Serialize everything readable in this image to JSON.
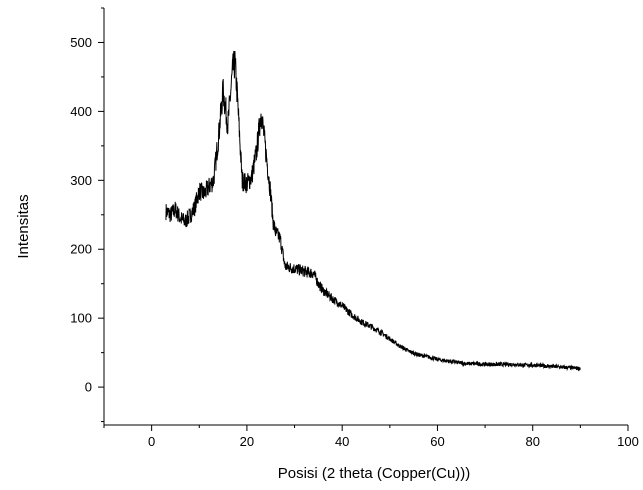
{
  "chart_data": {
    "type": "line",
    "title": "",
    "xlabel": "Posisi (2 theta (Copper(Cu)))",
    "ylabel": "Intensitas",
    "xlim": [
      -10,
      100
    ],
    "ylim": [
      -55,
      550
    ],
    "x_ticks": [
      0,
      20,
      40,
      60,
      80,
      100
    ],
    "x_tick_labels": [
      "0",
      "20",
      "40",
      "60",
      "80",
      "100"
    ],
    "y_ticks": [
      0,
      100,
      200,
      300,
      400,
      500
    ],
    "y_tick_labels": [
      "0",
      "100",
      "200",
      "300",
      "400",
      "500"
    ],
    "grid": false,
    "legend": "none",
    "line_color": "#000000",
    "series": [
      {
        "x": [
          3,
          4,
          5,
          6,
          7,
          8,
          9,
          10,
          11,
          12,
          13,
          14,
          15,
          16,
          17,
          17.5,
          18,
          19,
          20,
          21,
          22,
          23,
          24,
          25,
          25.5,
          26,
          27,
          28,
          30,
          32,
          34,
          35,
          36,
          38,
          40,
          42,
          44,
          46,
          48,
          50,
          52,
          54,
          56,
          58,
          60,
          62,
          64,
          66,
          68,
          70,
          72,
          74,
          76,
          78,
          80,
          82,
          84,
          86,
          88,
          90
        ],
        "y": [
          255,
          250,
          258,
          245,
          240,
          248,
          260,
          285,
          280,
          290,
          300,
          360,
          430,
          380,
          460,
          470,
          420,
          300,
          295,
          305,
          340,
          400,
          340,
          280,
          240,
          225,
          215,
          175,
          172,
          168,
          165,
          150,
          140,
          128,
          118,
          105,
          95,
          88,
          80,
          70,
          60,
          52,
          47,
          44,
          40,
          38,
          36,
          34,
          34,
          33,
          33,
          33,
          33,
          32,
          32,
          31,
          30,
          29,
          28,
          27
        ]
      }
    ]
  }
}
